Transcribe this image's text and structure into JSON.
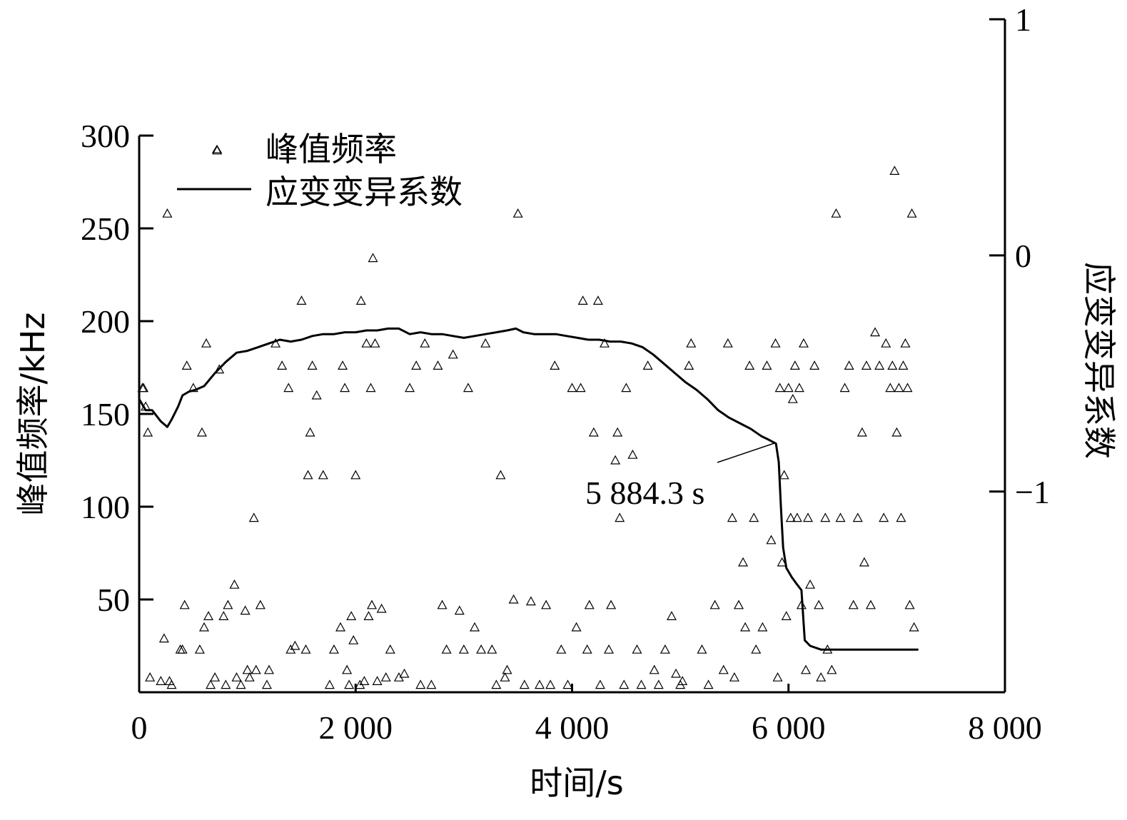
{
  "chart_data": {
    "type": "scatter",
    "xlabel": "时间/s",
    "ylabel": "峰值频率/kHz",
    "y2label": "应变变异系数",
    "xlim": [
      0,
      8000
    ],
    "ylim": [
      0,
      300
    ],
    "y2lim": [
      -1.85,
      1
    ],
    "x_ticks": [
      0,
      2000,
      4000,
      6000,
      8000
    ],
    "x_tick_labels": [
      "0",
      "2 000",
      "4 000",
      "6 000",
      "8 000"
    ],
    "y_ticks": [
      50,
      100,
      150,
      200,
      250,
      300
    ],
    "y_tick_labels": [
      "50",
      "100",
      "150",
      "200",
      "250",
      "300"
    ],
    "y2_ticks": [
      -1,
      0,
      1
    ],
    "y2_tick_labels": [
      "−1",
      "0",
      "1"
    ],
    "legend_position": "top-left",
    "grid": false,
    "annotation": {
      "text": "5 884.3 s",
      "x": 5884.3
    },
    "series": [
      {
        "name": "峰值频率",
        "kind": "scatter",
        "marker": "triangle-open",
        "axis": "left",
        "points": [
          [
            30,
            164
          ],
          [
            40,
            164
          ],
          [
            60,
            154
          ],
          [
            80,
            140
          ],
          [
            100,
            8
          ],
          [
            200,
            6
          ],
          [
            230,
            29
          ],
          [
            260,
            258
          ],
          [
            280,
            6
          ],
          [
            300,
            4
          ],
          [
            380,
            23
          ],
          [
            400,
            23
          ],
          [
            420,
            47
          ],
          [
            440,
            176
          ],
          [
            500,
            164
          ],
          [
            560,
            23
          ],
          [
            580,
            140
          ],
          [
            600,
            35
          ],
          [
            620,
            188
          ],
          [
            640,
            41
          ],
          [
            660,
            4
          ],
          [
            700,
            8
          ],
          [
            720,
            292
          ],
          [
            740,
            174
          ],
          [
            780,
            41
          ],
          [
            800,
            4
          ],
          [
            820,
            47
          ],
          [
            880,
            58
          ],
          [
            900,
            8
          ],
          [
            940,
            4
          ],
          [
            980,
            44
          ],
          [
            1000,
            12
          ],
          [
            1020,
            8
          ],
          [
            1060,
            94
          ],
          [
            1080,
            12
          ],
          [
            1120,
            47
          ],
          [
            1180,
            4
          ],
          [
            1200,
            12
          ],
          [
            1260,
            188
          ],
          [
            1320,
            176
          ],
          [
            1380,
            164
          ],
          [
            1400,
            23
          ],
          [
            1440,
            25
          ],
          [
            1500,
            211
          ],
          [
            1540,
            23
          ],
          [
            1560,
            117
          ],
          [
            1580,
            140
          ],
          [
            1600,
            176
          ],
          [
            1640,
            160
          ],
          [
            1700,
            117
          ],
          [
            1760,
            4
          ],
          [
            1800,
            23
          ],
          [
            1860,
            35
          ],
          [
            1880,
            176
          ],
          [
            1900,
            164
          ],
          [
            1920,
            12
          ],
          [
            1940,
            4
          ],
          [
            1960,
            41
          ],
          [
            1980,
            28
          ],
          [
            2000,
            117
          ],
          [
            2040,
            4
          ],
          [
            2050,
            211
          ],
          [
            2080,
            6
          ],
          [
            2100,
            188
          ],
          [
            2120,
            41
          ],
          [
            2140,
            164
          ],
          [
            2150,
            47
          ],
          [
            2160,
            234
          ],
          [
            2180,
            188
          ],
          [
            2200,
            6
          ],
          [
            2240,
            45
          ],
          [
            2280,
            8
          ],
          [
            2320,
            23
          ],
          [
            2400,
            8
          ],
          [
            2450,
            10
          ],
          [
            2500,
            164
          ],
          [
            2560,
            176
          ],
          [
            2600,
            4
          ],
          [
            2640,
            188
          ],
          [
            2700,
            4
          ],
          [
            2760,
            176
          ],
          [
            2800,
            47
          ],
          [
            2840,
            23
          ],
          [
            2900,
            182
          ],
          [
            2960,
            44
          ],
          [
            3000,
            23
          ],
          [
            3040,
            164
          ],
          [
            3100,
            35
          ],
          [
            3160,
            23
          ],
          [
            3200,
            188
          ],
          [
            3260,
            23
          ],
          [
            3300,
            4
          ],
          [
            3340,
            117
          ],
          [
            3380,
            8
          ],
          [
            3400,
            12
          ],
          [
            3460,
            50
          ],
          [
            3500,
            258
          ],
          [
            3560,
            4
          ],
          [
            3620,
            49
          ],
          [
            3700,
            4
          ],
          [
            3760,
            47
          ],
          [
            3800,
            4
          ],
          [
            3840,
            176
          ],
          [
            3900,
            23
          ],
          [
            3960,
            4
          ],
          [
            4000,
            164
          ],
          [
            4040,
            35
          ],
          [
            4080,
            164
          ],
          [
            4100,
            211
          ],
          [
            4140,
            23
          ],
          [
            4160,
            47
          ],
          [
            4200,
            140
          ],
          [
            4240,
            211
          ],
          [
            4260,
            4
          ],
          [
            4300,
            188
          ],
          [
            4340,
            23
          ],
          [
            4360,
            47
          ],
          [
            4400,
            125
          ],
          [
            4420,
            140
          ],
          [
            4440,
            94
          ],
          [
            4480,
            4
          ],
          [
            4500,
            164
          ],
          [
            4560,
            128
          ],
          [
            4600,
            23
          ],
          [
            4640,
            4
          ],
          [
            4700,
            176
          ],
          [
            4760,
            12
          ],
          [
            4800,
            4
          ],
          [
            4860,
            23
          ],
          [
            4920,
            41
          ],
          [
            4960,
            10
          ],
          [
            5000,
            4
          ],
          [
            5020,
            6
          ],
          [
            5080,
            176
          ],
          [
            5100,
            188
          ],
          [
            5200,
            23
          ],
          [
            5260,
            4
          ],
          [
            5320,
            47
          ],
          [
            5400,
            12
          ],
          [
            5440,
            188
          ],
          [
            5480,
            94
          ],
          [
            5500,
            8
          ],
          [
            5540,
            47
          ],
          [
            5580,
            70
          ],
          [
            5600,
            35
          ],
          [
            5640,
            176
          ],
          [
            5680,
            94
          ],
          [
            5700,
            23
          ],
          [
            5760,
            35
          ],
          [
            5800,
            176
          ],
          [
            5840,
            82
          ],
          [
            5880,
            188
          ],
          [
            5900,
            8
          ],
          [
            5920,
            164
          ],
          [
            5940,
            70
          ],
          [
            5960,
            117
          ],
          [
            5980,
            41
          ],
          [
            6000,
            164
          ],
          [
            6020,
            94
          ],
          [
            6040,
            158
          ],
          [
            6060,
            176
          ],
          [
            6080,
            94
          ],
          [
            6100,
            164
          ],
          [
            6120,
            47
          ],
          [
            6140,
            188
          ],
          [
            6160,
            12
          ],
          [
            6180,
            94
          ],
          [
            6200,
            58
          ],
          [
            6240,
            176
          ],
          [
            6280,
            47
          ],
          [
            6300,
            8
          ],
          [
            6340,
            94
          ],
          [
            6360,
            23
          ],
          [
            6400,
            12
          ],
          [
            6440,
            258
          ],
          [
            6480,
            94
          ],
          [
            6520,
            164
          ],
          [
            6560,
            176
          ],
          [
            6600,
            47
          ],
          [
            6640,
            94
          ],
          [
            6680,
            140
          ],
          [
            6700,
            70
          ],
          [
            6720,
            176
          ],
          [
            6760,
            47
          ],
          [
            6800,
            194
          ],
          [
            6840,
            176
          ],
          [
            6880,
            94
          ],
          [
            6900,
            188
          ],
          [
            6940,
            164
          ],
          [
            6960,
            176
          ],
          [
            6980,
            281
          ],
          [
            7000,
            140
          ],
          [
            7020,
            164
          ],
          [
            7040,
            94
          ],
          [
            7060,
            176
          ],
          [
            7080,
            188
          ],
          [
            7100,
            164
          ],
          [
            7120,
            47
          ],
          [
            7140,
            258
          ],
          [
            7160,
            35
          ]
        ]
      },
      {
        "name": "应变变异系数",
        "kind": "line",
        "axis": "left",
        "points": [
          [
            0,
            158
          ],
          [
            60,
            152
          ],
          [
            120,
            152
          ],
          [
            200,
            146
          ],
          [
            260,
            143
          ],
          [
            300,
            147
          ],
          [
            360,
            154
          ],
          [
            400,
            160
          ],
          [
            460,
            162
          ],
          [
            520,
            163
          ],
          [
            600,
            165
          ],
          [
            700,
            172
          ],
          [
            800,
            178
          ],
          [
            900,
            183
          ],
          [
            1000,
            184
          ],
          [
            1100,
            186
          ],
          [
            1200,
            188
          ],
          [
            1300,
            190
          ],
          [
            1400,
            189
          ],
          [
            1500,
            190
          ],
          [
            1600,
            192
          ],
          [
            1700,
            193
          ],
          [
            1800,
            193
          ],
          [
            1900,
            194
          ],
          [
            2000,
            194
          ],
          [
            2100,
            195
          ],
          [
            2200,
            195
          ],
          [
            2300,
            196
          ],
          [
            2400,
            196
          ],
          [
            2500,
            193
          ],
          [
            2600,
            194
          ],
          [
            2700,
            193
          ],
          [
            2800,
            193
          ],
          [
            2900,
            192
          ],
          [
            3000,
            191
          ],
          [
            3100,
            192
          ],
          [
            3200,
            193
          ],
          [
            3300,
            194
          ],
          [
            3400,
            195
          ],
          [
            3480,
            196
          ],
          [
            3550,
            194
          ],
          [
            3650,
            193
          ],
          [
            3750,
            193
          ],
          [
            3850,
            193
          ],
          [
            3950,
            192
          ],
          [
            4050,
            191
          ],
          [
            4150,
            190
          ],
          [
            4250,
            190
          ],
          [
            4350,
            189
          ],
          [
            4450,
            189
          ],
          [
            4550,
            188
          ],
          [
            4650,
            186
          ],
          [
            4750,
            182
          ],
          [
            4850,
            177
          ],
          [
            4950,
            172
          ],
          [
            5050,
            167
          ],
          [
            5150,
            163
          ],
          [
            5250,
            158
          ],
          [
            5350,
            152
          ],
          [
            5450,
            148
          ],
          [
            5550,
            145
          ],
          [
            5650,
            142
          ],
          [
            5750,
            138
          ],
          [
            5820,
            136
          ],
          [
            5884.3,
            134
          ],
          [
            5910,
            124
          ],
          [
            5930,
            100
          ],
          [
            5950,
            78
          ],
          [
            5980,
            67
          ],
          [
            6030,
            62
          ],
          [
            6080,
            58
          ],
          [
            6120,
            55
          ],
          [
            6150,
            28
          ],
          [
            6200,
            25
          ],
          [
            6300,
            23
          ],
          [
            6400,
            23
          ],
          [
            6600,
            23
          ],
          [
            6800,
            23
          ],
          [
            7000,
            23
          ],
          [
            7200,
            23
          ]
        ]
      }
    ]
  }
}
